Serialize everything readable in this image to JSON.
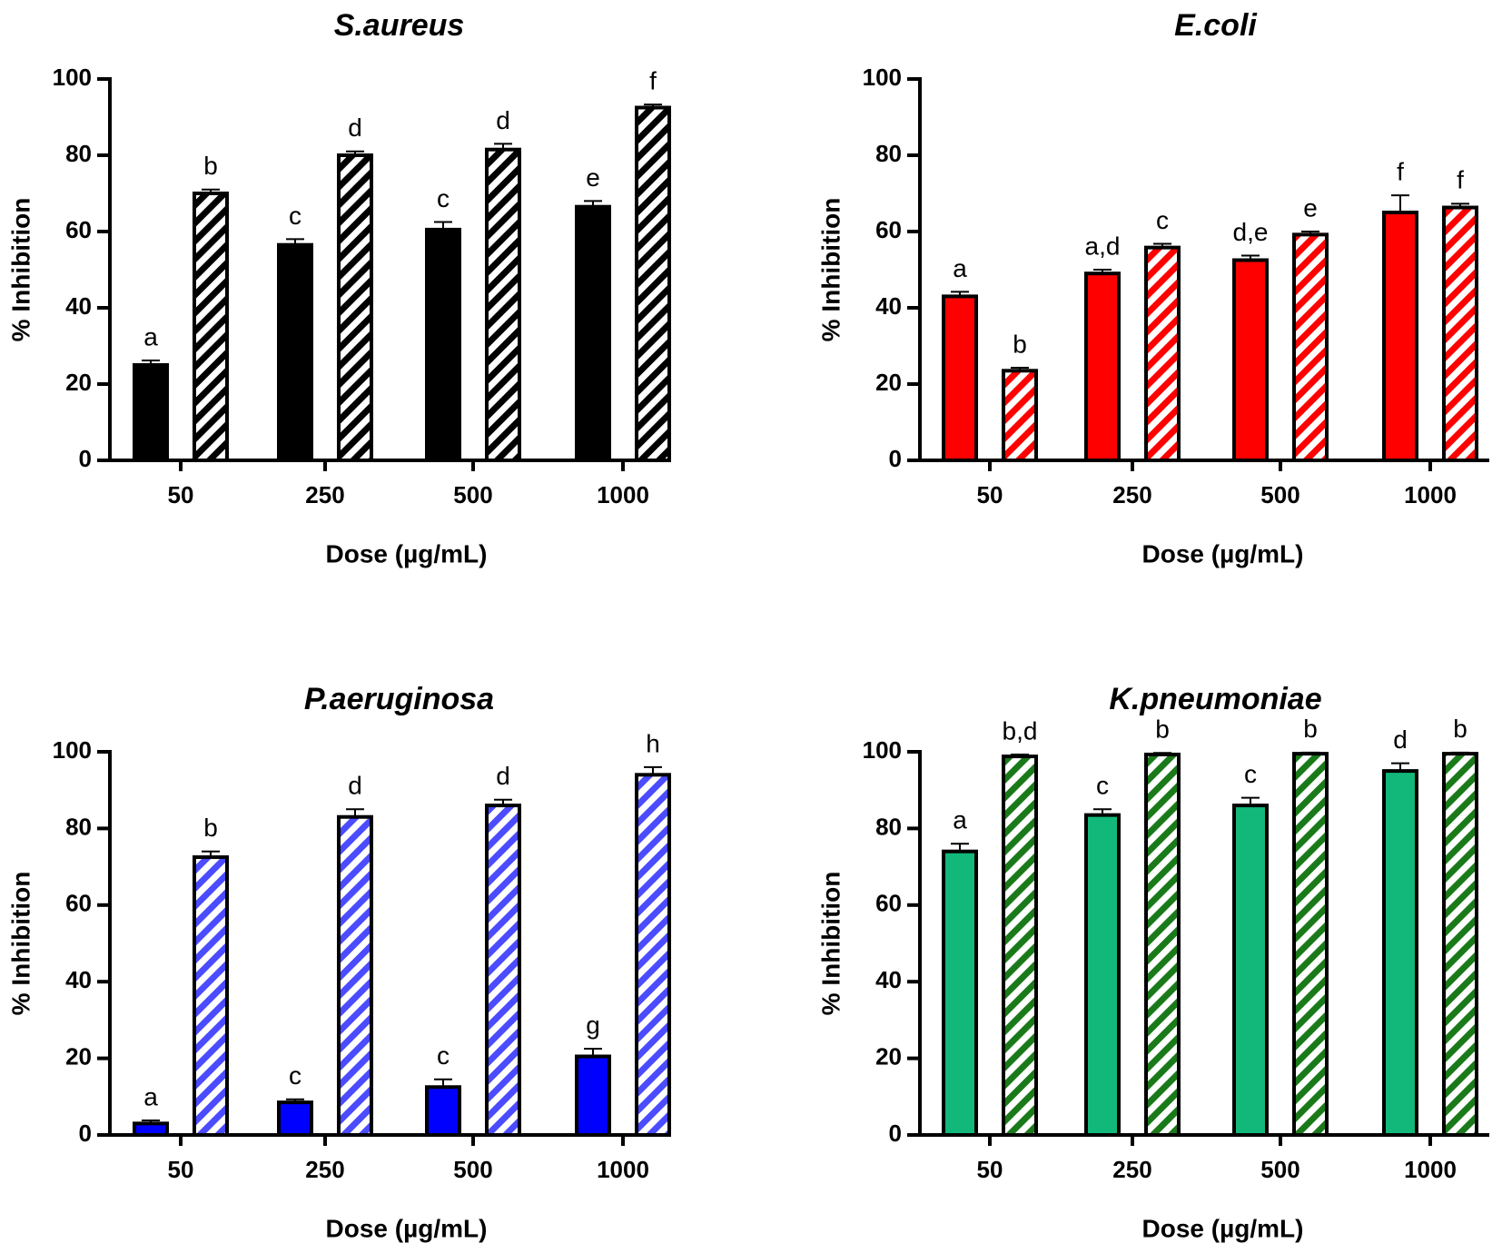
{
  "chart_data": [
    {
      "type": "bar",
      "title": "S.aureus",
      "xlabel": "Dose (µg/mL)",
      "ylabel": "% Inhibition",
      "ylim": [
        0,
        100
      ],
      "yticks": [
        0,
        20,
        40,
        60,
        80,
        100
      ],
      "categories": [
        "50",
        "250",
        "500",
        "1000"
      ],
      "colors": {
        "primary": "#000000",
        "hatch": "#000000"
      },
      "series": [
        {
          "pattern": "solid",
          "values": [
            25,
            56.5,
            60.5,
            66.5
          ],
          "errors": [
            1.2,
            1.5,
            2,
            1.5
          ],
          "letters": [
            "a",
            "c",
            "c",
            "e"
          ]
        },
        {
          "pattern": "hatched",
          "values": [
            70,
            80,
            81.5,
            92.5
          ],
          "errors": [
            1,
            1,
            1.5,
            0.8
          ],
          "letters": [
            "b",
            "d",
            "d",
            "f"
          ]
        }
      ]
    },
    {
      "type": "bar",
      "title": "E.coli",
      "xlabel": "Dose (µg/mL)",
      "ylabel": "% Inhibition",
      "ylim": [
        0,
        100
      ],
      "yticks": [
        0,
        20,
        40,
        60,
        80,
        100
      ],
      "categories": [
        "50",
        "250",
        "500",
        "1000"
      ],
      "colors": {
        "primary": "#ff0000",
        "hatch": "#ff0000"
      },
      "series": [
        {
          "pattern": "solid",
          "values": [
            43,
            49,
            52.5,
            65
          ],
          "errors": [
            1.2,
            1,
            1.2,
            4.5
          ],
          "letters": [
            "a",
            "a,d",
            "d,e",
            "f"
          ]
        },
        {
          "pattern": "hatched",
          "values": [
            23.5,
            55.8,
            59.2,
            66.3
          ],
          "errors": [
            0.8,
            1,
            0.8,
            1
          ],
          "letters": [
            "b",
            "c",
            "e",
            "f"
          ]
        }
      ]
    },
    {
      "type": "bar",
      "title": "P.aeruginosa",
      "xlabel": "Dose (µg/mL)",
      "ylabel": "% Inhibition",
      "ylim": [
        0,
        100
      ],
      "yticks": [
        0,
        20,
        40,
        60,
        80,
        100
      ],
      "categories": [
        "50",
        "250",
        "500",
        "1000"
      ],
      "colors": {
        "primary": "#0000ff",
        "hatch": "#4b4bff"
      },
      "series": [
        {
          "pattern": "solid",
          "values": [
            3,
            8.5,
            12.5,
            20.5
          ],
          "errors": [
            0.8,
            0.8,
            2,
            2
          ],
          "letters": [
            "a",
            "c",
            "c",
            "g"
          ]
        },
        {
          "pattern": "hatched",
          "values": [
            72.5,
            83,
            86,
            94
          ],
          "errors": [
            1.5,
            2,
            1.5,
            2
          ],
          "letters": [
            "b",
            "d",
            "d",
            "h"
          ]
        }
      ]
    },
    {
      "type": "bar",
      "title": "K.pneumoniae",
      "xlabel": "Dose (µg/mL)",
      "ylabel": "% Inhibition",
      "ylim": [
        0,
        100
      ],
      "yticks": [
        0,
        20,
        40,
        60,
        80,
        100
      ],
      "categories": [
        "50",
        "250",
        "500",
        "1000"
      ],
      "colors": {
        "primary": "#12b87a",
        "hatch": "#1a7a1a"
      },
      "series": [
        {
          "pattern": "solid",
          "values": [
            74,
            83.5,
            86,
            95
          ],
          "errors": [
            2,
            1.5,
            2,
            2
          ],
          "letters": [
            "a",
            "c",
            "c",
            "d"
          ]
        },
        {
          "pattern": "hatched",
          "values": [
            98.8,
            99.3,
            99.5,
            99.5
          ],
          "errors": [
            0.5,
            0.4,
            0.3,
            0.3
          ],
          "letters": [
            "b,d",
            "b",
            "b",
            "b"
          ]
        }
      ]
    }
  ]
}
